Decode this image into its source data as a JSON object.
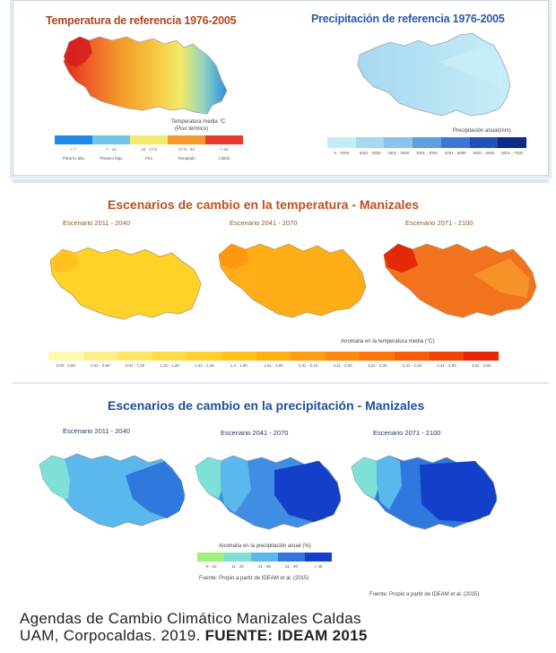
{
  "top": {
    "temp_title": "Temperatura de referencia 1976-2005",
    "precip_title": "Precipitación de referencia 1976-2005",
    "temp_legend_title": "Temperatura media °C",
    "temp_legend_subtitle": "(Piso térmico)",
    "temp_legend_ranges": [
      "< 7",
      "7 - 12",
      "12 - 17.5",
      "17.5 - 24",
      "> 24"
    ],
    "temp_legend_names": [
      "Páramo alto",
      "Páramo bajo",
      "Frío",
      "Templado",
      "Cálido"
    ],
    "temp_legend_colors": [
      "#1e88e5",
      "#6ec6e8",
      "#f2ea6a",
      "#f39a2b",
      "#e83a2a"
    ],
    "precip_legend_title": "Precipitación anual(mm)",
    "precip_legend_ranges": [
      "0 - 2000",
      "2001 - 2500",
      "2501 - 3000",
      "3001 - 4000",
      "4001 - 5000",
      "5001 - 6000",
      "6001 - 7000"
    ],
    "precip_legend_colors": [
      "#c4eef6",
      "#a7d8f1",
      "#8cc2ec",
      "#5e9fdf",
      "#3b78d3",
      "#2150b9",
      "#0e2a8a"
    ]
  },
  "temperature": {
    "title": "Escenarios de cambio en la temperatura - Manizales",
    "scenarios": [
      "Escenario 2011 - 2040",
      "Escenario 2041 - 2070",
      "Escenario 2071 - 2100"
    ],
    "legend_title": "Anomalía en la temperatura media (°C)",
    "legend_ranges": [
      "0,00 - 0,50",
      "0,51 - 0,80",
      "0,81 - 1,00",
      "1,01 - 1,20",
      "1,21 - 1,40",
      "1,4 - 1,60",
      "1,61 - 2,00",
      "2,01 - 2,10",
      "2,11 - 2,20",
      "2,21 - 2,30",
      "2,31 - 2,40",
      "2,41 - 2,50",
      "2,51 - 2,60"
    ],
    "legend_colors": [
      "#fff7b3",
      "#ffef8a",
      "#ffe666",
      "#ffdc45",
      "#ffd02e",
      "#ffc21f",
      "#ffb015",
      "#ff9c10",
      "#ff880d",
      "#ff730b",
      "#fa5c0a",
      "#f0440a",
      "#e3290a"
    ]
  },
  "precipitation": {
    "title": "Escenarios de cambio en la precipitación - Manizales",
    "scenarios": [
      "Escenario 2011 - 2040",
      "Escenario 2041 - 2070",
      "Escenario 2071 - 2100"
    ],
    "legend_title": "Anomalía en la precipitación anual (%)",
    "legend_ranges": [
      "-9 - 10",
      "11 - 20",
      "21 - 30",
      "31 - 40",
      "> 40"
    ],
    "legend_colors": [
      "#9ef07a",
      "#7ee0d6",
      "#5ab8ec",
      "#2f78de",
      "#1440c9"
    ],
    "source_left": "Fuente: Propio a partir de IDEAM et al. (2015)",
    "source_right": "Fuente: Propio a partir de IDEAM et al. (2015)"
  },
  "caption": {
    "line1": "Agendas de Cambio Climático Manizales Caldas",
    "line2_plain": "UAM, Corpocaldas.  2019. ",
    "line2_bold": "FUENTE: IDEAM 2015"
  }
}
